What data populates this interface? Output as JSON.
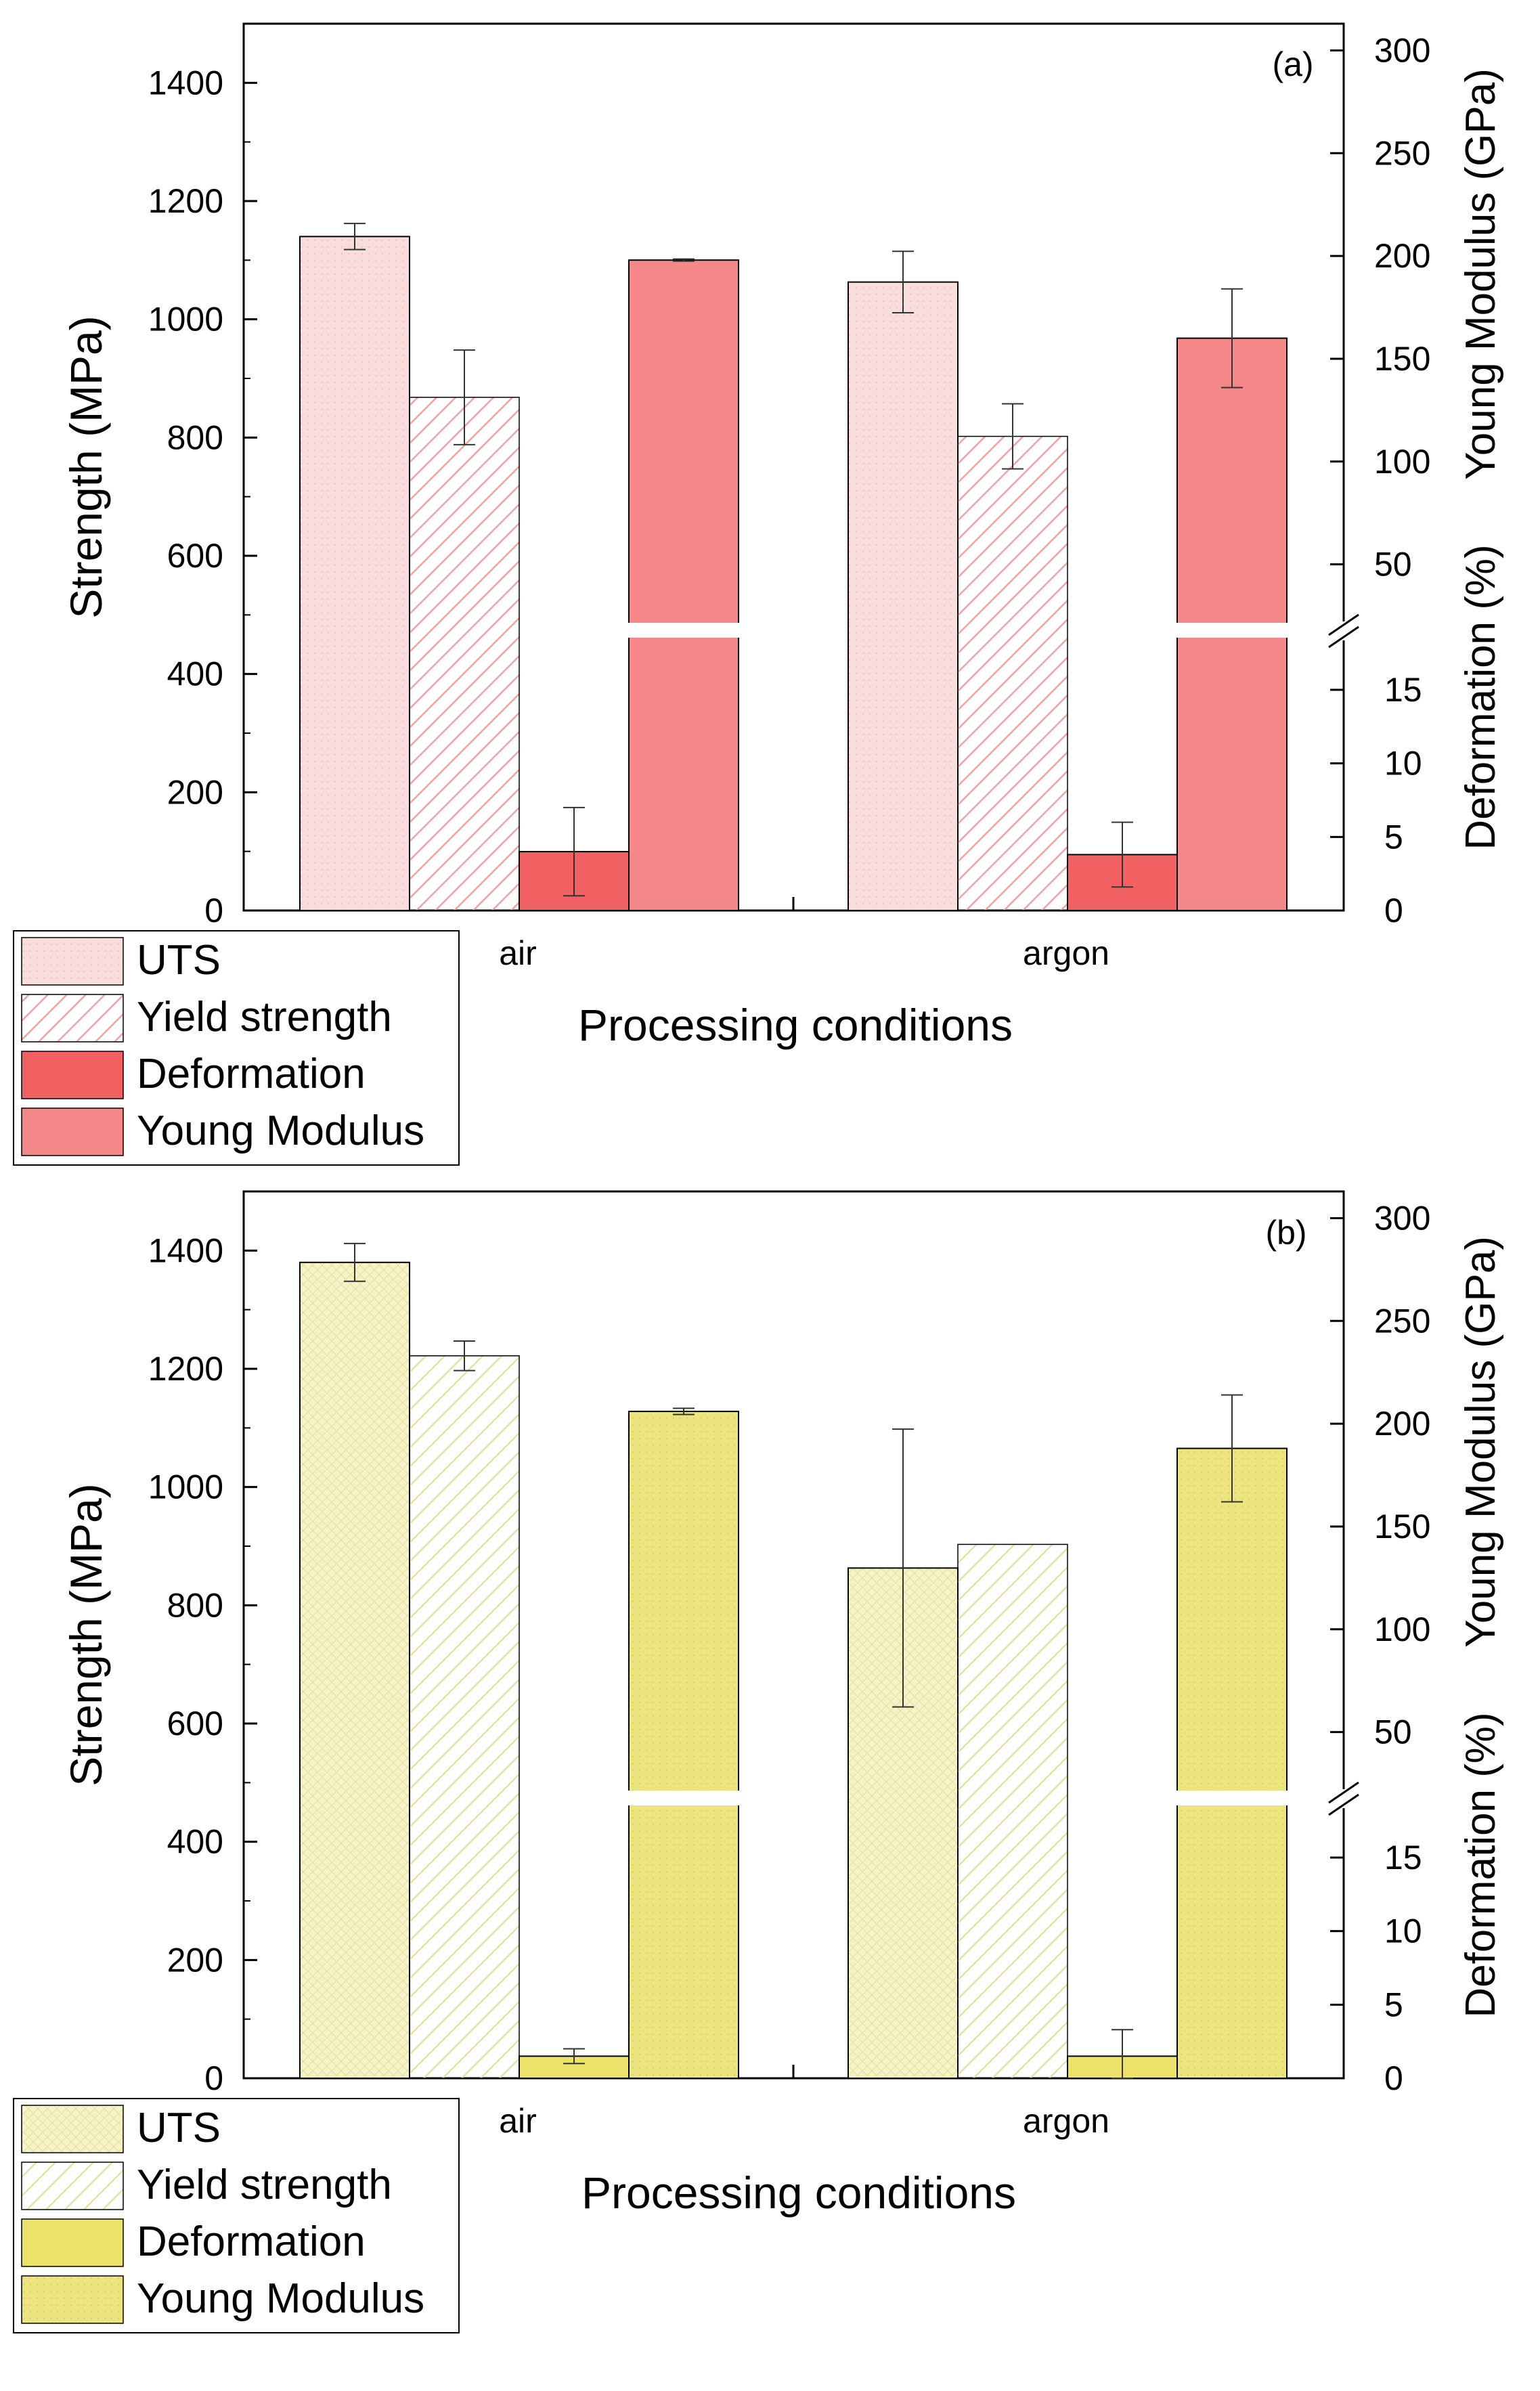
{
  "chart_data": [
    {
      "type": "bar",
      "panel_label": "(a)",
      "title": "",
      "xlabel": "Processing conditions",
      "ylabel": "Strength (MPa)",
      "ylabel_right_upper": "Young Modulus (GPa)",
      "ylabel_right_lower": "Deformation (%)",
      "categories": [
        "air",
        "argon"
      ],
      "ylim": [
        0,
        1500
      ],
      "yticks": [
        0,
        200,
        400,
        600,
        800,
        1000,
        1200,
        1400
      ],
      "right_upper_ticks": [
        50,
        100,
        150,
        200,
        250,
        300
      ],
      "right_upper_range": [
        17.6,
        313
      ],
      "right_lower_ticks": [
        0,
        5,
        10,
        15
      ],
      "right_lower_range": [
        0,
        19
      ],
      "grid": false,
      "legend_position": "bottom-left, outside plot",
      "colors": {
        "uts": "#f9dcdc",
        "yield_stroke": "#f4a0a0",
        "deformation": "#f26161",
        "young": "#f48888"
      },
      "series": [
        {
          "name": "UTS",
          "axis": "left",
          "pattern": "light-fill",
          "values": [
            1140,
            1063
          ],
          "errors": [
            22,
            52
          ]
        },
        {
          "name": "Yield strength",
          "axis": "left",
          "pattern": "hatch",
          "values": [
            868,
            802
          ],
          "errors": [
            80,
            55
          ]
        },
        {
          "name": "Deformation",
          "axis": "right-lower",
          "pattern": "solid",
          "values": [
            4.0,
            3.8
          ],
          "errors": [
            3.0,
            2.2
          ]
        },
        {
          "name": "Young Modulus",
          "axis": "right-upper",
          "pattern": "solid-break",
          "values": [
            198,
            160
          ],
          "errors": [
            0.5,
            24
          ]
        }
      ]
    },
    {
      "type": "bar",
      "panel_label": "(b)",
      "title": "",
      "xlabel": "Processing conditions",
      "ylabel": "Strength (MPa)",
      "ylabel_right_upper": "Young Modulus (GPa)",
      "ylabel_right_lower": "Deformation (%)",
      "categories": [
        "air",
        "argon"
      ],
      "ylim": [
        0,
        1500
      ],
      "yticks": [
        0,
        200,
        400,
        600,
        800,
        1000,
        1200,
        1400
      ],
      "right_upper_ticks": [
        50,
        100,
        150,
        200,
        250,
        300
      ],
      "right_upper_range": [
        17.6,
        313
      ],
      "right_lower_ticks": [
        0,
        5,
        10,
        15
      ],
      "right_lower_range": [
        0,
        19
      ],
      "grid": false,
      "legend_position": "bottom-left, outside plot",
      "colors": {
        "uts": "#f6f3c9",
        "yield_stroke": "#e6e2a4",
        "deformation": "#ece26a",
        "young": "#ece57f"
      },
      "series": [
        {
          "name": "UTS",
          "axis": "left",
          "pattern": "light-fill",
          "values": [
            1380,
            863
          ],
          "errors": [
            32,
            235
          ]
        },
        {
          "name": "Yield strength",
          "axis": "left",
          "pattern": "hatch",
          "values": [
            1222,
            903
          ],
          "errors": [
            25,
            0
          ]
        },
        {
          "name": "Deformation",
          "axis": "right-lower",
          "pattern": "solid",
          "values": [
            1.5,
            1.5
          ],
          "errors": [
            0.5,
            1.8
          ]
        },
        {
          "name": "Young Modulus",
          "axis": "right-upper",
          "pattern": "solid-break",
          "values": [
            206,
            188
          ],
          "errors": [
            1.5,
            26
          ]
        }
      ]
    }
  ]
}
